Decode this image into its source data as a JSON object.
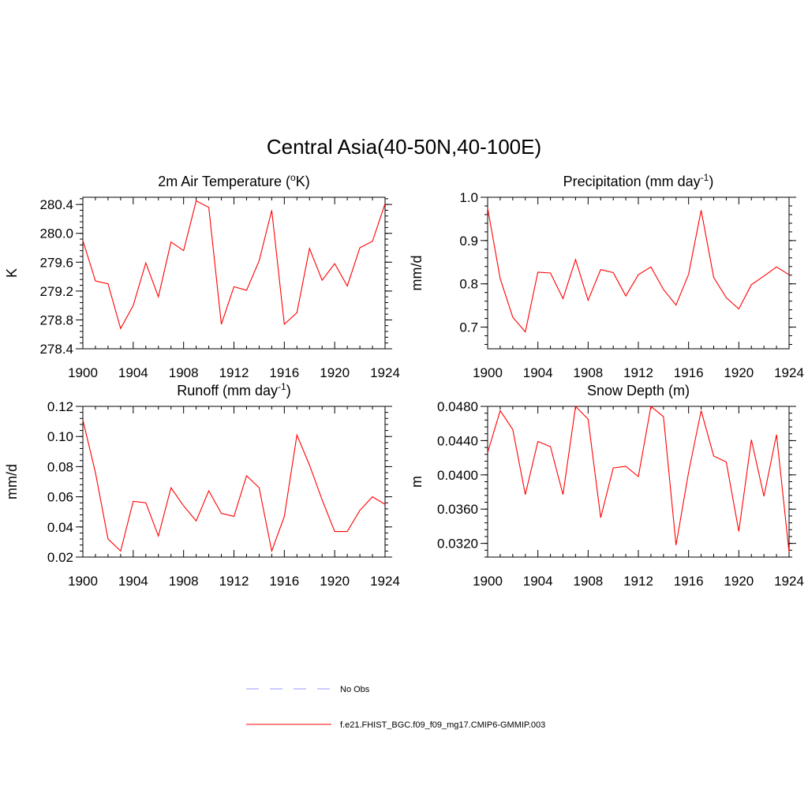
{
  "title": "Central Asia(40-50N,40-100E)",
  "legend": [
    {
      "label": "No Obs",
      "color": "#9999ff",
      "dash": true
    },
    {
      "label": "f.e21.FHIST_BGC.f09_f09_mg17.CMIP6-GMMIP.003",
      "color": "#ff0000",
      "dash": false
    }
  ],
  "chart_data": [
    {
      "type": "line",
      "title_main": "2m Air Temperature (",
      "title_sup": "o",
      "title_end": "K)",
      "title_sup_mode": "pre",
      "ylabel": "K",
      "xlim": [
        1900,
        1924
      ],
      "ylim": [
        278.4,
        280.5
      ],
      "xticks": [
        "1900",
        "1904",
        "1908",
        "1912",
        "1916",
        "1920",
        "1924"
      ],
      "yticks": [
        {
          "v": 278.4,
          "label": "278.4"
        },
        {
          "v": 278.8,
          "label": "278.8"
        },
        {
          "v": 279.2,
          "label": "279.2"
        },
        {
          "v": 279.6,
          "label": "279.6"
        },
        {
          "v": 280.0,
          "label": "280.0"
        },
        {
          "v": 280.4,
          "label": "280.4"
        }
      ],
      "color": "#ff0000",
      "x": [
        1900,
        1901,
        1902,
        1903,
        1904,
        1905,
        1906,
        1907,
        1908,
        1909,
        1910,
        1911,
        1912,
        1913,
        1914,
        1915,
        1916,
        1917,
        1918,
        1919,
        1920,
        1921,
        1922,
        1923,
        1924
      ],
      "y": [
        279.9,
        279.34,
        279.3,
        278.68,
        279.0,
        279.59,
        279.12,
        279.88,
        279.76,
        280.45,
        280.36,
        278.74,
        279.26,
        279.21,
        279.62,
        280.32,
        278.74,
        278.9,
        279.79,
        279.35,
        279.58,
        279.27,
        279.8,
        279.89,
        280.41
      ]
    },
    {
      "type": "line",
      "title_main": "Precipitation (mm day",
      "title_sup": "-1",
      "title_end": ")",
      "title_sup_mode": "post",
      "ylabel": "mm/d",
      "xlim": [
        1900,
        1924
      ],
      "ylim": [
        0.65,
        1.0
      ],
      "xticks": [
        "1900",
        "1904",
        "1908",
        "1912",
        "1916",
        "1920",
        "1924"
      ],
      "yticks": [
        {
          "v": 0.7,
          "label": "0.7"
        },
        {
          "v": 0.8,
          "label": "0.8"
        },
        {
          "v": 0.9,
          "label": "0.9"
        },
        {
          "v": 1.0,
          "label": "1.0"
        }
      ],
      "color": "#ff0000",
      "x": [
        1900,
        1901,
        1902,
        1903,
        1904,
        1905,
        1906,
        1907,
        1908,
        1909,
        1910,
        1911,
        1912,
        1913,
        1914,
        1915,
        1916,
        1917,
        1918,
        1919,
        1920,
        1921,
        1922,
        1923,
        1924
      ],
      "y": [
        0.975,
        0.812,
        0.723,
        0.689,
        0.827,
        0.825,
        0.766,
        0.856,
        0.762,
        0.833,
        0.826,
        0.772,
        0.821,
        0.839,
        0.787,
        0.751,
        0.822,
        0.97,
        0.815,
        0.768,
        0.742,
        0.798,
        0.818,
        0.839,
        0.821
      ]
    },
    {
      "type": "line",
      "title_main": "Runoff (mm day",
      "title_sup": "-1",
      "title_end": ")",
      "title_sup_mode": "post",
      "ylabel": "mm/d",
      "xlim": [
        1900,
        1924
      ],
      "ylim": [
        0.02,
        0.12
      ],
      "xticks": [
        "1900",
        "1904",
        "1908",
        "1912",
        "1916",
        "1920",
        "1924"
      ],
      "yticks": [
        {
          "v": 0.02,
          "label": "0.02"
        },
        {
          "v": 0.04,
          "label": "0.04"
        },
        {
          "v": 0.06,
          "label": "0.06"
        },
        {
          "v": 0.08,
          "label": "0.08"
        },
        {
          "v": 0.1,
          "label": "0.10"
        },
        {
          "v": 0.12,
          "label": "0.12"
        }
      ],
      "color": "#ff0000",
      "x": [
        1900,
        1901,
        1902,
        1903,
        1904,
        1905,
        1906,
        1907,
        1908,
        1909,
        1910,
        1911,
        1912,
        1913,
        1914,
        1915,
        1916,
        1917,
        1918,
        1919,
        1920,
        1921,
        1922,
        1923,
        1924
      ],
      "y": [
        0.111,
        0.076,
        0.032,
        0.024,
        0.057,
        0.056,
        0.034,
        0.066,
        0.054,
        0.044,
        0.064,
        0.049,
        0.047,
        0.074,
        0.066,
        0.024,
        0.047,
        0.101,
        0.081,
        0.058,
        0.037,
        0.037,
        0.051,
        0.06,
        0.055
      ]
    },
    {
      "type": "line",
      "title_main": "Snow Depth (m)",
      "title_sup": "",
      "title_end": "",
      "title_sup_mode": "none",
      "ylabel": "m",
      "xlim": [
        1900,
        1924
      ],
      "ylim": [
        0.0304,
        0.048
      ],
      "xticks": [
        "1900",
        "1904",
        "1908",
        "1912",
        "1916",
        "1920",
        "1924"
      ],
      "yticks": [
        {
          "v": 0.032,
          "label": "0.0320"
        },
        {
          "v": 0.036,
          "label": "0.0360"
        },
        {
          "v": 0.04,
          "label": "0.0400"
        },
        {
          "v": 0.044,
          "label": "0.0440"
        },
        {
          "v": 0.048,
          "label": "0.0480"
        }
      ],
      "color": "#ff0000",
      "x": [
        1900,
        1901,
        1902,
        1903,
        1904,
        1905,
        1906,
        1907,
        1908,
        1909,
        1910,
        1911,
        1912,
        1913,
        1914,
        1915,
        1916,
        1917,
        1918,
        1919,
        1920,
        1921,
        1922,
        1923,
        1924
      ],
      "y": [
        0.0426,
        0.0475,
        0.0453,
        0.0377,
        0.0439,
        0.0433,
        0.0377,
        0.048,
        0.0465,
        0.035,
        0.0408,
        0.041,
        0.0398,
        0.048,
        0.0468,
        0.0318,
        0.0403,
        0.0475,
        0.0422,
        0.0415,
        0.0334,
        0.0441,
        0.0375,
        0.0447,
        0.031
      ]
    }
  ]
}
